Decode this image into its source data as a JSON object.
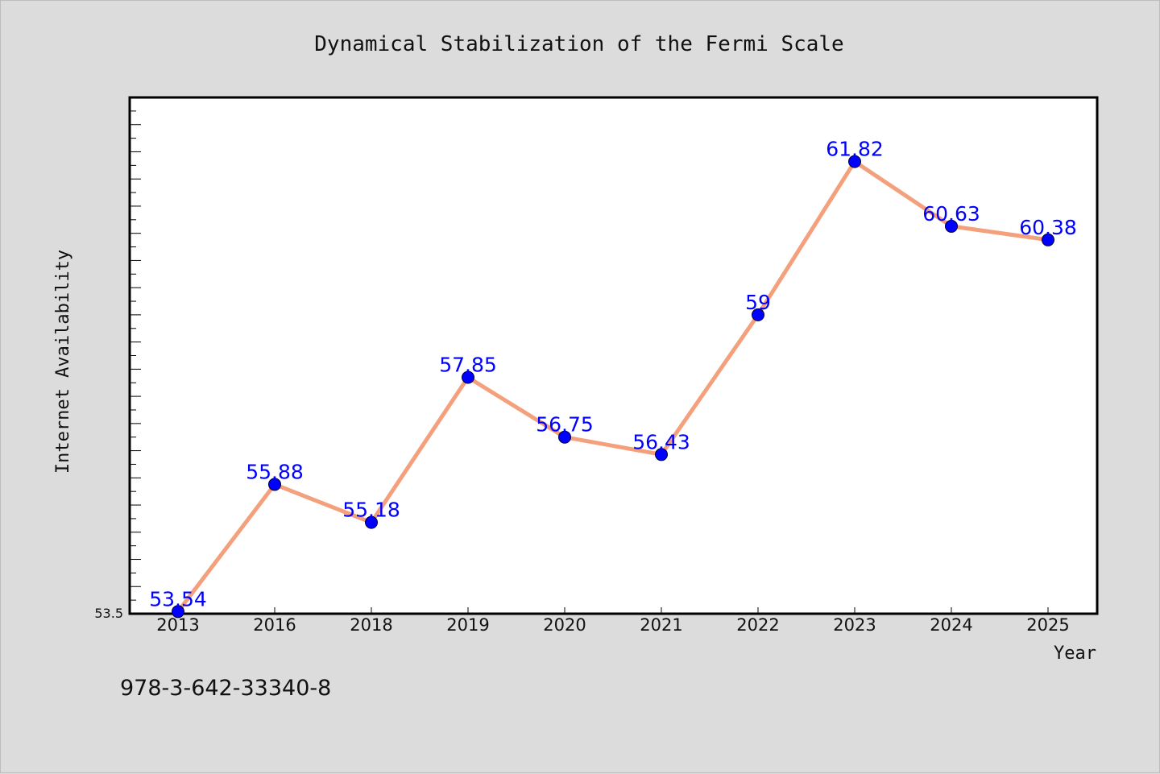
{
  "chart_data": {
    "type": "line",
    "title": "Dynamical Stabilization of the Fermi Scale",
    "xlabel": "Year",
    "ylabel": "Internet Availability",
    "categories": [
      "2013",
      "2016",
      "2018",
      "2019",
      "2020",
      "2021",
      "2022",
      "2023",
      "2024",
      "2025"
    ],
    "series": [
      {
        "values": [
          53.54,
          55.88,
          55.18,
          57.85,
          56.75,
          56.43,
          59,
          61.82,
          60.63,
          60.38
        ],
        "labels": [
          "53.54",
          "55.88",
          "55.18",
          "57.85",
          "56.75",
          "56.43",
          "59",
          "61.82",
          "60.63",
          "60.38"
        ]
      }
    ],
    "ylim": [
      53.5,
      63
    ],
    "y_tick_labels": [
      "53.5"
    ],
    "grid": false,
    "colors": {
      "line": "#f4a07c",
      "marker": "#0000ff",
      "data_label": "#0000ff",
      "plot_bg": "#ffffff",
      "page_bg": "#dcdcdc"
    }
  },
  "footer": {
    "isbn": "978-3-642-33340-8"
  }
}
